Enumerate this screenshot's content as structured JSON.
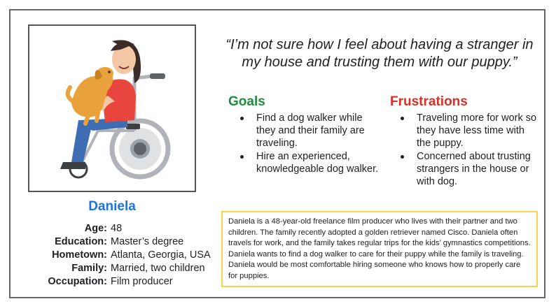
{
  "persona": {
    "name": "Daniela",
    "quote": "“I’m not sure how I feel about having a stranger in my house and trusting them with our puppy.”",
    "facts": [
      {
        "label": "Age:",
        "value": "48"
      },
      {
        "label": "Education:",
        "value": "Master’s degree"
      },
      {
        "label": "Hometown:",
        "value": "Atlanta, Georgia, USA"
      },
      {
        "label": "Family:",
        "value": "Married, two children"
      },
      {
        "label": "Occupation:",
        "value": "Film producer"
      }
    ],
    "goals": {
      "title": "Goals",
      "items": [
        "Find a dog walker while they and their family are traveling.",
        "Hire an experienced, knowledgeable dog walker."
      ]
    },
    "frustrations": {
      "title": "Frustrations",
      "items": [
        "Traveling more for work so they have less time with the puppy.",
        "Concerned about trusting strangers in the house or with dog."
      ]
    },
    "bio": "Daniela is a 48-year-old freelance film producer who lives with their partner and two children. The family recently adopted a golden retriever named Cisco. Daniela often travels for work, and the family takes regular trips for the kids’ gymnastics competitions. Daniela wants to find a dog walker to care for their puppy while the family is traveling. Daniela would be most comfortable hiring someone who knows how to properly care for puppies."
  },
  "illustration": {
    "subject": "woman in wheelchair hugging puppy",
    "colors": {
      "shirt": "#e8453c",
      "pants": "#3f6db3",
      "dog": "#e9a23b",
      "hair": "#3b2a26",
      "wheelchair": "#b0b4b9",
      "shoes": "#3c4043"
    }
  },
  "colors": {
    "name": "#1a73e8",
    "goals": "#1e8e3e",
    "frustrations": "#d93025",
    "bio_border": "#f9d14b"
  }
}
